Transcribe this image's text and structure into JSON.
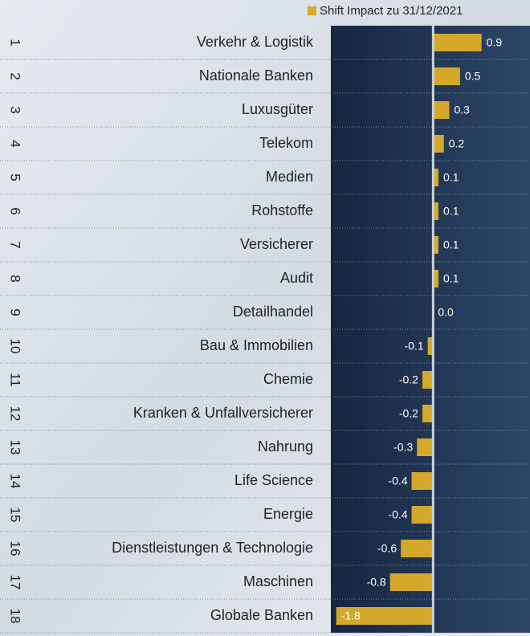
{
  "chart_data": {
    "type": "bar",
    "orientation": "horizontal",
    "ranks": [
      "1",
      "2",
      "3",
      "4",
      "5",
      "6",
      "7",
      "8",
      "9",
      "10",
      "11",
      "12",
      "13",
      "14",
      "15",
      "16",
      "17",
      "18"
    ],
    "categories": [
      "Verkehr & Logistik",
      "Nationale Banken",
      "Luxusgüter",
      "Telekom",
      "Medien",
      "Rohstoffe",
      "Versicherer",
      "Audit",
      "Detailhandel",
      "Bau & Immobilien",
      "Chemie",
      "Kranken & Unfallversicherer",
      "Nahrung",
      "Life Science",
      "Energie",
      "Dienstleistungen & Technologie",
      "Maschinen",
      "Globale Banken"
    ],
    "series": [
      {
        "name": "Shift Impact zu 31/12/2021",
        "color": "#d4a82a",
        "values": [
          0.9,
          0.5,
          0.3,
          0.2,
          0.1,
          0.1,
          0.1,
          0.1,
          0.0,
          -0.1,
          -0.2,
          -0.2,
          -0.3,
          -0.4,
          -0.4,
          -0.6,
          -0.8,
          -1.8
        ],
        "value_labels": [
          "0.9",
          "0.5",
          "0.3",
          "0.2",
          "0.1",
          "0.1",
          "0.1",
          "0.1",
          "0.0",
          "-0.1",
          "-0.2",
          "-0.2",
          "-0.3",
          "-0.4",
          "-0.4",
          "-0.6",
          "-0.8",
          "-1.8"
        ]
      }
    ],
    "xlim": [
      -1.9,
      1.8
    ],
    "legend": "top-right"
  }
}
